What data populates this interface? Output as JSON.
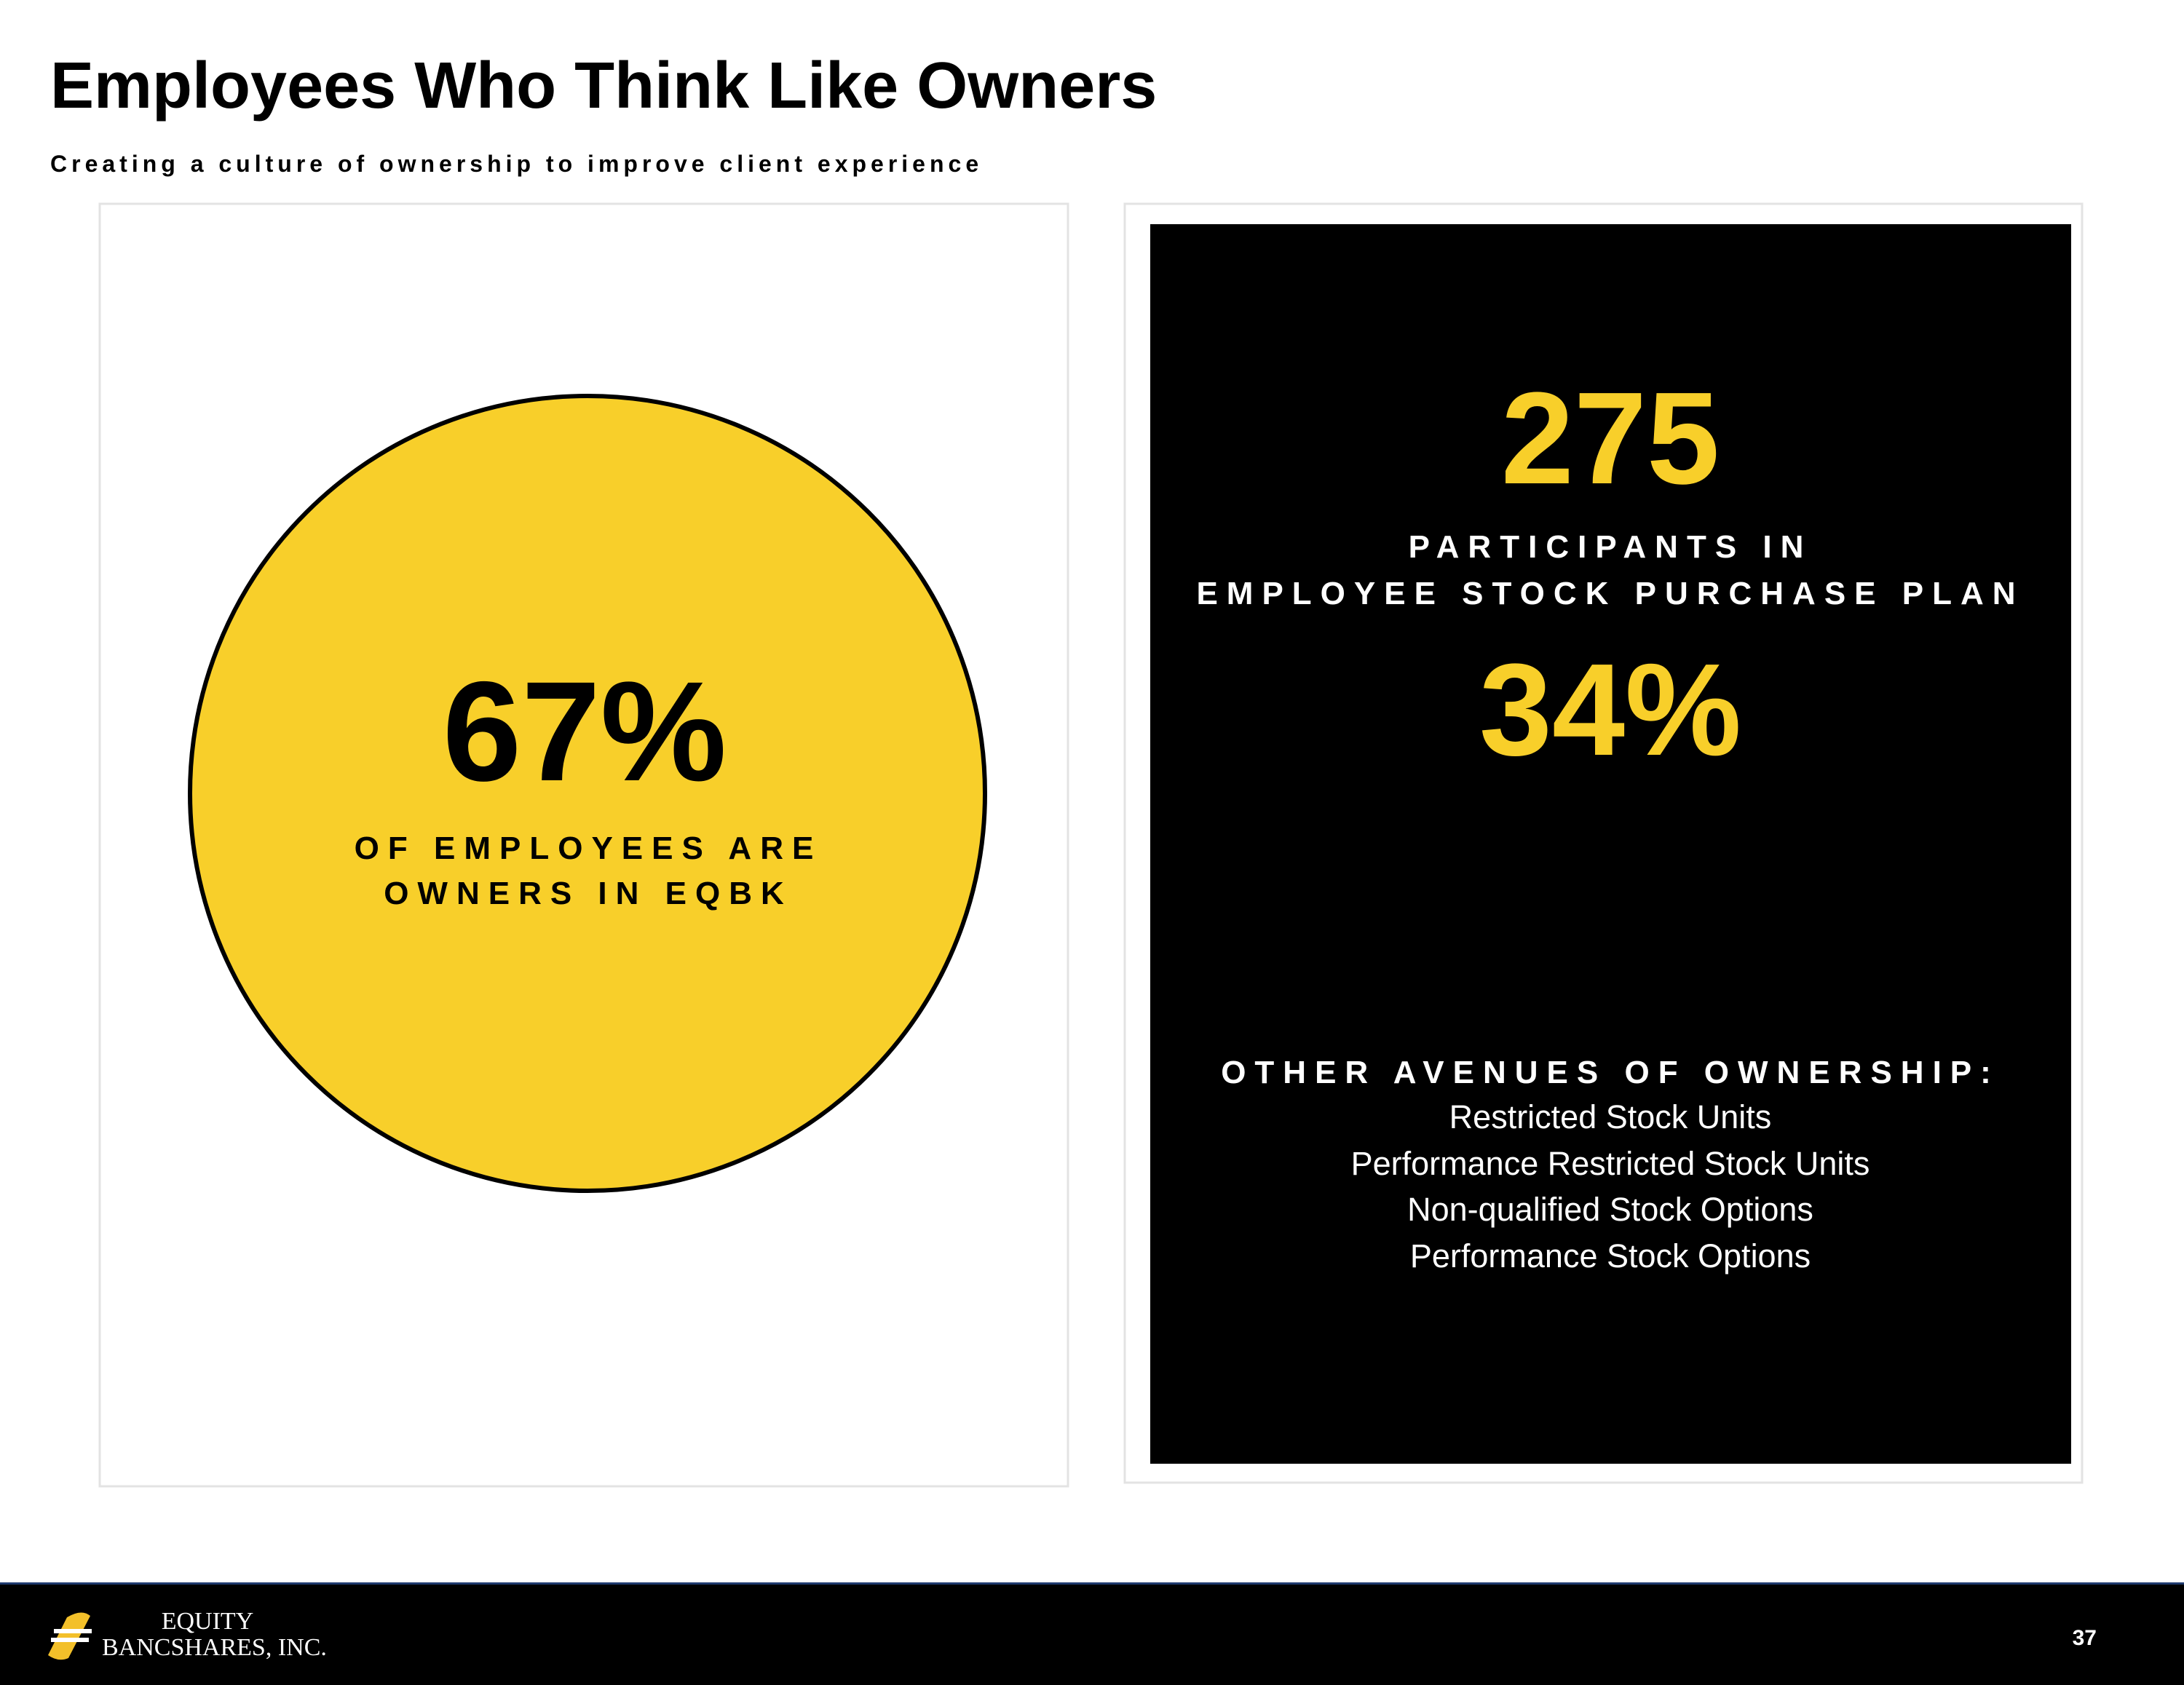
{
  "header": {
    "title": "Employees Who Think Like Owners",
    "subtitle": "Creating a culture of ownership to improve client experience"
  },
  "left_panel": {
    "stat": "67%",
    "caption": [
      "OF EMPLOYEES ARE",
      "OWNERS IN EQBK"
    ]
  },
  "right_panel": {
    "stat_1": "275",
    "caption_1": [
      "PARTICIPANTS IN",
      "EMPLOYEE STOCK PURCHASE PLAN"
    ],
    "stat_2": "34%",
    "other_heading": "OTHER AVENUES OF OWNERSHIP:",
    "other_items": [
      "Restricted Stock Units",
      "Performance Restricted Stock Units",
      "Non-qualified Stock Options",
      "Performance Stock Options"
    ]
  },
  "footer": {
    "logo_line_1": "EQUITY",
    "logo_line_2": "BANCSHARES, INC.",
    "page_number": "37"
  }
}
